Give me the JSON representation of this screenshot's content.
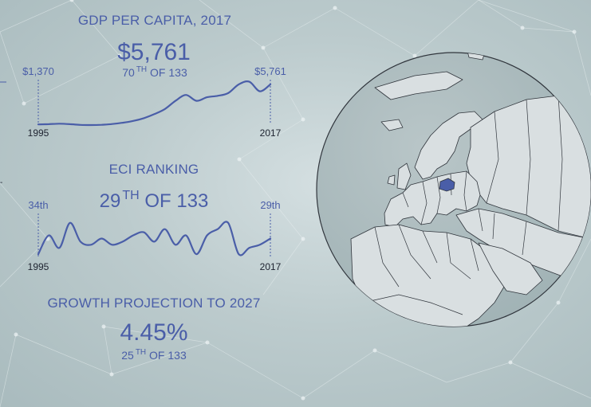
{
  "gdp": {
    "label": "GDP PER CAPITA, 2017",
    "value": "$5,761",
    "rank_num": "70",
    "rank_sup": "TH",
    "rank_tail": " OF 133",
    "start_value": "$1,370",
    "end_value": "$5,761",
    "start_year": "1995",
    "end_year": "2017"
  },
  "eci": {
    "label": "ECI RANKING",
    "rank_num": "29",
    "rank_sup": "TH",
    "rank_tail": " OF 133",
    "start_value": "34th",
    "end_value": "29th",
    "start_year": "1995",
    "end_year": "2017"
  },
  "growth": {
    "label": "GROWTH PROJECTION TO 2027",
    "value": "4.45%",
    "rank_num": "25",
    "rank_sup": "TH",
    "rank_tail": " OF 133"
  },
  "globe": {
    "highlight_color": "#4a5ea8"
  },
  "colors": {
    "accent": "#4a5ea8",
    "land": "#d9dfe1",
    "outline": "#30353c"
  },
  "chart_data": [
    {
      "type": "line",
      "name": "gdp_per_capita_sparkline",
      "x": [
        1995,
        1996,
        1997,
        1998,
        1999,
        2000,
        2001,
        2002,
        2003,
        2004,
        2005,
        2006,
        2007,
        2008,
        2009,
        2010,
        2011,
        2012,
        2013,
        2014,
        2015,
        2016,
        2017
      ],
      "y": [
        1370,
        1400,
        1450,
        1400,
        1320,
        1300,
        1330,
        1410,
        1550,
        1750,
        2050,
        2500,
        3050,
        3950,
        4600,
        3950,
        4350,
        4500,
        4800,
        5750,
        6050,
        5000,
        5761
      ],
      "ylim": [
        1300,
        6100
      ],
      "xlabel": "",
      "ylabel": ""
    },
    {
      "type": "line",
      "name": "eci_ranking_sparkline",
      "x": [
        1995,
        1996,
        1997,
        1998,
        1999,
        2000,
        2001,
        2002,
        2003,
        2004,
        2005,
        2006,
        2007,
        2008,
        2009,
        2010,
        2011,
        2012,
        2013,
        2014,
        2015,
        2016,
        2017
      ],
      "y": [
        34,
        28,
        32,
        24,
        30,
        31,
        29,
        31,
        30,
        28,
        27,
        30,
        26,
        31,
        28,
        34,
        28,
        26,
        24,
        34,
        32,
        31,
        29
      ],
      "ylim": [
        22,
        35
      ],
      "xlabel": "",
      "ylabel": ""
    }
  ]
}
